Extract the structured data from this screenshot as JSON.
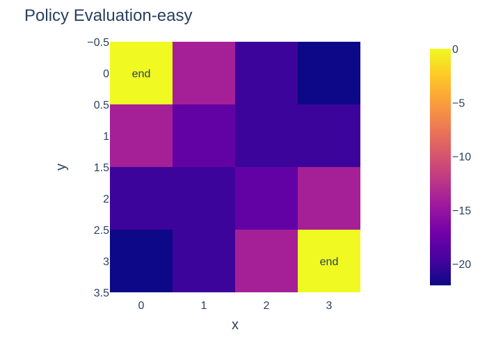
{
  "chart_data": {
    "type": "heatmap",
    "title": "Policy Evaluation-easy",
    "xlabel": "x",
    "ylabel": "y",
    "x": [
      0,
      1,
      2,
      3
    ],
    "y": [
      0,
      1,
      2,
      3
    ],
    "x_ticks": [
      "0",
      "1",
      "2",
      "3"
    ],
    "y_ticks": [
      "−0.5",
      "0",
      "0.5",
      "1",
      "1.5",
      "2",
      "2.5",
      "3",
      "3.5"
    ],
    "z": [
      [
        0,
        -14,
        -20,
        -22
      ],
      [
        -14,
        -18,
        -20,
        -20
      ],
      [
        -20,
        -20,
        -18,
        -14
      ],
      [
        -22,
        -20,
        -14,
        0
      ]
    ],
    "annotations": [
      {
        "x": 0,
        "y": 0,
        "text": "end"
      },
      {
        "x": 3,
        "y": 3,
        "text": "end"
      }
    ],
    "colorscale": "plasma",
    "zmin": -22,
    "zmax": 0,
    "colorbar_ticks": [
      "0",
      "−5",
      "−10",
      "−15",
      "−20"
    ],
    "colorbar_tick_values": [
      0,
      -5,
      -10,
      -15,
      -20
    ],
    "colors": {
      "text": "#2a3f5f",
      "plasma": [
        "#0d0887",
        "#46039f",
        "#7201a8",
        "#9c179e",
        "#bd3786",
        "#d8576b",
        "#ed7953",
        "#fb9f3a",
        "#fdca26",
        "#f0f921"
      ]
    }
  }
}
